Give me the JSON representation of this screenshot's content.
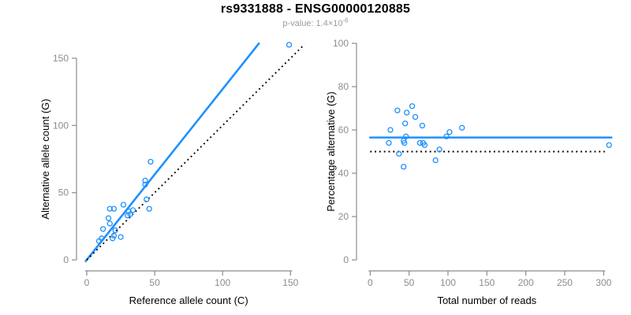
{
  "title": "rs9331888 - ENSG00000120885",
  "subtitle": {
    "text": "p-value: 1.4×10",
    "exponent": "-6"
  },
  "colors": {
    "accent_blue": "#1E90FF",
    "dotted_black": "#000000",
    "axis_gray": "#8c8c8c",
    "tick_label_gray": "#8c8c8c",
    "axis_title_black": "#000000",
    "title_black": "#000000",
    "subtitle_gray": "#9b9b9b",
    "background": "#ffffff"
  },
  "chart_data": [
    {
      "type": "scatter",
      "name": "allele-counts-panel",
      "xlabel": "Reference allele count (C)",
      "ylabel": "Alternative allele count (G)",
      "xlim": [
        0,
        160
      ],
      "ylim": [
        0,
        160
      ],
      "xticks": [
        0,
        50,
        100,
        150
      ],
      "yticks": [
        0,
        50,
        100,
        150
      ],
      "grid": false,
      "legend": "none",
      "marker": "open-circle",
      "points": [
        [
          9,
          14
        ],
        [
          11,
          16
        ],
        [
          12,
          23
        ],
        [
          16,
          31
        ],
        [
          17,
          27
        ],
        [
          17,
          38
        ],
        [
          19,
          16
        ],
        [
          20,
          18
        ],
        [
          20,
          38
        ],
        [
          21,
          22
        ],
        [
          25,
          17
        ],
        [
          27,
          41
        ],
        [
          30,
          33
        ],
        [
          31,
          36
        ],
        [
          32,
          34
        ],
        [
          34,
          37
        ],
        [
          43,
          56
        ],
        [
          43,
          59
        ],
        [
          44,
          45
        ],
        [
          46,
          38
        ],
        [
          47,
          73
        ],
        [
          149,
          160
        ]
      ],
      "lines": [
        {
          "label": "fit-line",
          "slope": 1.27,
          "intercept": 0,
          "style": "solid"
        },
        {
          "label": "identity-line",
          "slope": 1,
          "intercept": 0,
          "style": "dotted"
        }
      ]
    },
    {
      "type": "scatter",
      "name": "percentage-panel",
      "xlabel": "Total number of reads",
      "ylabel": "Percentage alternative (G)",
      "xlim": [
        0,
        310
      ],
      "ylim": [
        0,
        100
      ],
      "xticks": [
        0,
        50,
        100,
        150,
        200,
        250,
        300
      ],
      "yticks": [
        0,
        20,
        40,
        60,
        80,
        100
      ],
      "grid": false,
      "legend": "none",
      "marker": "open-circle",
      "points": [
        [
          24,
          54
        ],
        [
          26,
          60
        ],
        [
          35,
          69
        ],
        [
          37,
          49
        ],
        [
          43,
          43
        ],
        [
          43,
          55
        ],
        [
          44,
          54
        ],
        [
          45,
          63
        ],
        [
          46,
          57
        ],
        [
          47,
          68
        ],
        [
          54,
          71
        ],
        [
          58,
          66
        ],
        [
          64,
          54
        ],
        [
          67,
          62
        ],
        [
          68,
          54
        ],
        [
          70,
          53
        ],
        [
          84,
          46
        ],
        [
          89,
          51
        ],
        [
          98,
          57
        ],
        [
          102,
          59
        ],
        [
          118,
          61
        ],
        [
          307,
          53
        ]
      ],
      "lines": [
        {
          "label": "fit-line",
          "slope": 0,
          "intercept": 56.5,
          "style": "solid"
        },
        {
          "label": "null-line",
          "slope": 0,
          "intercept": 50,
          "style": "dotted"
        }
      ]
    }
  ]
}
